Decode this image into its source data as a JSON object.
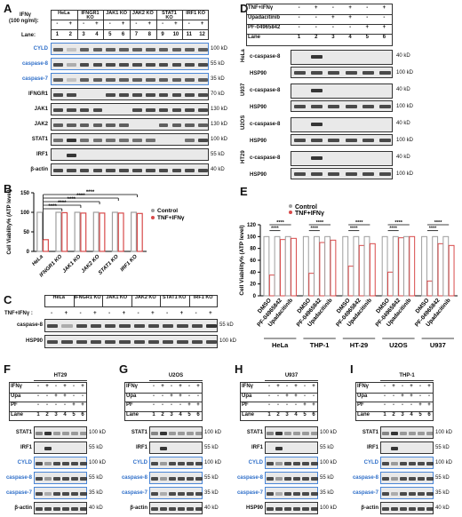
{
  "panelA": {
    "label": "A",
    "ifn": "IFNγ",
    "ifn_unit": "(100 ng/ml):",
    "lane_label": "Lane:",
    "groups": [
      "HeLa",
      "IFNGR1 KO",
      "JAK1 KO",
      "JAK2 KO",
      "STAT1 KO",
      "IRF1 KO"
    ],
    "signs": [
      "-",
      "+",
      "-",
      "+",
      "-",
      "+",
      "-",
      "+",
      "-",
      "+",
      "-",
      "+"
    ],
    "lanes": [
      "1",
      "2",
      "3",
      "4",
      "5",
      "6",
      "7",
      "8",
      "9",
      "10",
      "11",
      "12"
    ],
    "rows": [
      {
        "name": "CYLD",
        "kd": "100 kD",
        "blue": true
      },
      {
        "name": "caspase-8",
        "kd": "55 kD",
        "blue": true
      },
      {
        "name": "caspase-7",
        "kd": "35 kD",
        "blue": true
      },
      {
        "name": "IFNGR1",
        "kd": "70 kD",
        "blue": false
      },
      {
        "name": "JAK1",
        "kd": "130 kD",
        "blue": false
      },
      {
        "name": "JAK2",
        "kd": "130 kD",
        "blue": false
      },
      {
        "name": "STAT1",
        "kd": "100 kD",
        "blue": false
      },
      {
        "name": "IRF1",
        "kd": "55 kD",
        "blue": false
      },
      {
        "name": "β-actin",
        "kd": "40 kD",
        "blue": false
      }
    ]
  },
  "panelB": {
    "label": "B",
    "ylabel": "Cell Viability% (ATP level)",
    "legend": [
      "Control",
      "TNF+IFNγ"
    ],
    "sig": "****",
    "chart_data": {
      "type": "bar",
      "categories": [
        "HeLa",
        "IFNGR1 KO",
        "JAK1 KO",
        "JAK2 KO",
        "STAT1 KO",
        "IRF1 KO"
      ],
      "series": [
        {
          "name": "Control",
          "values": [
            100,
            100,
            100,
            100,
            100,
            100
          ]
        },
        {
          "name": "TNF+IFNγ",
          "values": [
            30,
            99,
            98,
            98,
            98,
            97
          ]
        }
      ],
      "ylim": [
        0,
        150
      ],
      "yticks": [
        "0",
        "50",
        "100",
        "150"
      ],
      "colors": [
        "#9e9e9e",
        "#d84a4a"
      ]
    }
  },
  "panelC": {
    "label": "C",
    "tnf": "TNF+IFNγ :",
    "groups": [
      "HeLa",
      "IFNGR1 KO",
      "JAK1 KO",
      "JAK2 KO",
      "STAT1 KO",
      "IRF1 KO"
    ],
    "signs": [
      "-",
      "+",
      "-",
      "+",
      "-",
      "+",
      "-",
      "+",
      "-",
      "+",
      "-",
      "+"
    ],
    "rows": [
      {
        "name": "caspase-8",
        "kd": "55 kD"
      },
      {
        "name": "HSP90",
        "kd": "100 kD"
      }
    ]
  },
  "panelD": {
    "label": "D",
    "conds": [
      {
        "name": "TNF+IFNγ",
        "signs": [
          "-",
          "+",
          "-",
          "+",
          "-",
          "+"
        ]
      },
      {
        "name": "Upadacitinib",
        "signs": [
          "-",
          "-",
          "+",
          "+",
          "-",
          "-"
        ]
      },
      {
        "name": "PF-04965842",
        "signs": [
          "-",
          "-",
          "-",
          "-",
          "+",
          "+"
        ]
      },
      {
        "name": "Lane",
        "signs": [
          "1",
          "2",
          "3",
          "4",
          "5",
          "6"
        ]
      }
    ],
    "cells": [
      "HeLa",
      "U937",
      "U2OS",
      "HT29"
    ],
    "rows": [
      {
        "name": "c-caspase-8",
        "kd": "40 kD"
      },
      {
        "name": "HSP90",
        "kd": "100 kD"
      }
    ]
  },
  "panelE": {
    "label": "E",
    "ylabel": "Cell Viability% (ATP level)",
    "legend": [
      "Control",
      "TNF+IFNγ"
    ],
    "sig": "****",
    "chart_data": {
      "type": "bar",
      "groups": [
        "HeLa",
        "THP-1",
        "HT-29",
        "U2OS",
        "U937"
      ],
      "categories": [
        "DMSO",
        "PF-04965842",
        "Upadacitinib"
      ],
      "series": [
        {
          "name": "Control",
          "values": [
            [
              100,
              100,
              100
            ],
            [
              100,
              100,
              100
            ],
            [
              100,
              100,
              100
            ],
            [
              100,
              100,
              100
            ],
            [
              100,
              100,
              100
            ]
          ]
        },
        {
          "name": "TNF+IFNγ",
          "values": [
            [
              35,
              95,
              97
            ],
            [
              38,
              90,
              94
            ],
            [
              50,
              85,
              88
            ],
            [
              40,
              98,
              100
            ],
            [
              25,
              88,
              85
            ]
          ]
        }
      ],
      "ylim": [
        0,
        120
      ],
      "yticks": [
        "0",
        "20",
        "40",
        "60",
        "80",
        "100",
        "120"
      ],
      "colors": [
        "#9e9e9e",
        "#d84a4a"
      ]
    }
  },
  "smallPanels": [
    {
      "label": "F",
      "title": "HT29",
      "conds": [
        {
          "name": "IFNγ",
          "signs": [
            "-",
            "+",
            "-",
            "+",
            "-",
            "+"
          ]
        },
        {
          "name": "Upa",
          "signs": [
            "-",
            "-",
            "+",
            "+",
            "-",
            "-"
          ]
        },
        {
          "name": "PF",
          "signs": [
            "-",
            "-",
            "-",
            "-",
            "+",
            "+"
          ]
        },
        {
          "name": "Lane",
          "signs": [
            "1",
            "2",
            "3",
            "4",
            "5",
            "6"
          ]
        }
      ],
      "rows": [
        {
          "name": "STAT1",
          "kd": "100 kD",
          "blue": false
        },
        {
          "name": "IRF1",
          "kd": "55 kD",
          "blue": false
        },
        {
          "name": "CYLD",
          "kd": "100 kD",
          "blue": true
        },
        {
          "name": "caspase-8",
          "kd": "55 kD",
          "blue": true
        },
        {
          "name": "caspase-7",
          "kd": "35 kD",
          "blue": true
        },
        {
          "name": "β-actin",
          "kd": "40 kD",
          "blue": false
        }
      ]
    },
    {
      "label": "G",
      "title": "U2OS",
      "conds": [
        {
          "name": "IFNγ",
          "signs": [
            "-",
            "+",
            "-",
            "+",
            "-",
            "+"
          ]
        },
        {
          "name": "Upa",
          "signs": [
            "-",
            "-",
            "+",
            "+",
            "-",
            "-"
          ]
        },
        {
          "name": "PF",
          "signs": [
            "-",
            "-",
            "-",
            "-",
            "+",
            "+"
          ]
        },
        {
          "name": "Lane",
          "signs": [
            "1",
            "2",
            "3",
            "4",
            "5",
            "6"
          ]
        }
      ],
      "rows": [
        {
          "name": "STAT1",
          "kd": "100 kD",
          "blue": false
        },
        {
          "name": "IRF1",
          "kd": "55 kD",
          "blue": false
        },
        {
          "name": "CYLD",
          "kd": "100 kD",
          "blue": true
        },
        {
          "name": "caspase-8",
          "kd": "55 kD",
          "blue": true
        },
        {
          "name": "caspase-7",
          "kd": "35 kD",
          "blue": true
        },
        {
          "name": "β-actin",
          "kd": "40 kD",
          "blue": false
        }
      ]
    },
    {
      "label": "H",
      "title": "U937",
      "conds": [
        {
          "name": "IFNγ",
          "signs": [
            "-",
            "+",
            "-",
            "+",
            "-",
            "+"
          ]
        },
        {
          "name": "Upa",
          "signs": [
            "-",
            "-",
            "+",
            "+",
            "-",
            "-"
          ]
        },
        {
          "name": "PF",
          "signs": [
            "-",
            "-",
            "-",
            "-",
            "+",
            "+"
          ]
        },
        {
          "name": "Lane",
          "signs": [
            "1",
            "2",
            "3",
            "4",
            "5",
            "6"
          ]
        }
      ],
      "rows": [
        {
          "name": "STAT1",
          "kd": "100 kD",
          "blue": false
        },
        {
          "name": "IRF1",
          "kd": "55 kD",
          "blue": false
        },
        {
          "name": "CYLD",
          "kd": "100 kD",
          "blue": true
        },
        {
          "name": "caspase-8",
          "kd": "55 kD",
          "blue": true
        },
        {
          "name": "caspase-7",
          "kd": "35 kD",
          "blue": true
        },
        {
          "name": "HSP90",
          "kd": "100 kD",
          "blue": false
        }
      ]
    },
    {
      "label": "I",
      "title": "THP-1",
      "conds": [
        {
          "name": "IFNγ",
          "signs": [
            "-",
            "+",
            "-",
            "+",
            "-",
            "+"
          ]
        },
        {
          "name": "Upa",
          "signs": [
            "-",
            "-",
            "+",
            "+",
            "-",
            "-"
          ]
        },
        {
          "name": "PF",
          "signs": [
            "-",
            "-",
            "-",
            "-",
            "+",
            "+"
          ]
        },
        {
          "name": "Lane",
          "signs": [
            "1",
            "2",
            "3",
            "4",
            "5",
            "6"
          ]
        }
      ],
      "rows": [
        {
          "name": "STAT1",
          "kd": "100 kD",
          "blue": false
        },
        {
          "name": "IRF1",
          "kd": "55 kD",
          "blue": false
        },
        {
          "name": "CYLD",
          "kd": "100 kD",
          "blue": true
        },
        {
          "name": "caspase-8",
          "kd": "55 kD",
          "blue": true
        },
        {
          "name": "caspase-7",
          "kd": "35 kD",
          "blue": true
        },
        {
          "name": "β-actin",
          "kd": "40 kD",
          "blue": false
        }
      ]
    }
  ]
}
